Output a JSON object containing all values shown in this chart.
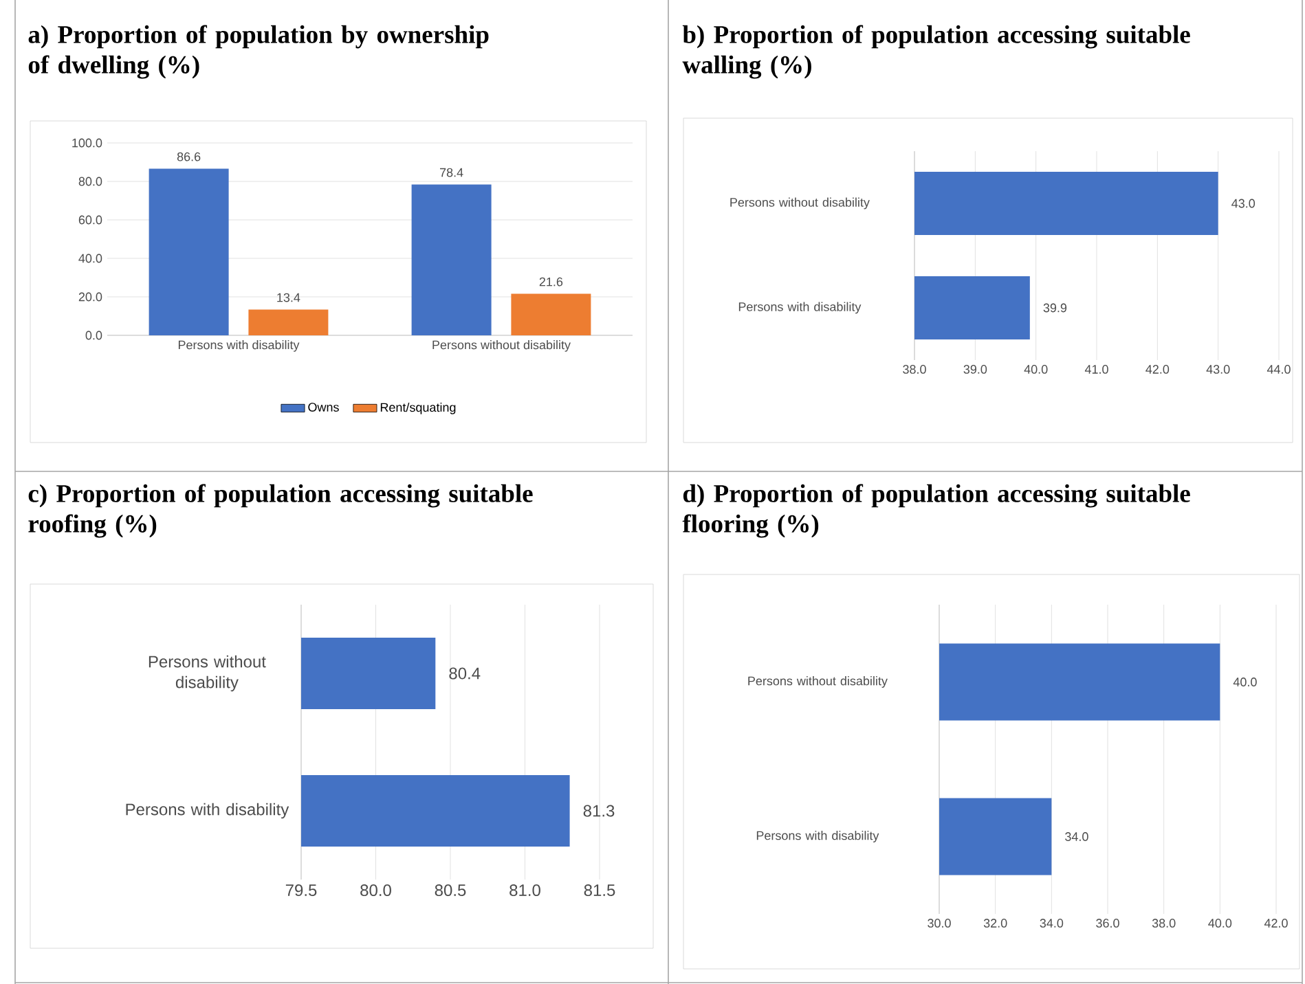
{
  "chart_data": [
    {
      "type": "bar",
      "title": "a) Proportion of population by ownership of dwelling (%)",
      "categories": [
        "Persons with disability",
        "Persons without disability"
      ],
      "series": [
        {
          "name": "Owns",
          "color": "#4472c4",
          "values": [
            86.6,
            78.4
          ],
          "value_labels": [
            "86.6",
            "78.4"
          ]
        },
        {
          "name": "Rent/squating",
          "color": "#ed7d31",
          "values": [
            13.4,
            21.6
          ],
          "value_labels": [
            "13.4",
            "21.6"
          ]
        }
      ],
      "ylim": [
        0,
        100
      ],
      "yticks": [
        {
          "value": 0,
          "label": "0.0"
        },
        {
          "value": 20,
          "label": "20.0"
        },
        {
          "value": 40,
          "label": "40.0"
        },
        {
          "value": 60,
          "label": "60.0"
        },
        {
          "value": 80,
          "label": "80.0"
        },
        {
          "value": 100,
          "label": "100.0"
        }
      ],
      "grid": "y",
      "legend": "bottom"
    },
    {
      "type": "bar",
      "orientation": "horizontal",
      "title": "b) Proportion of population accessing suitable walling (%)",
      "categories": [
        "Persons without disability",
        "Persons with disability"
      ],
      "values": [
        43.0,
        39.9
      ],
      "value_labels": [
        "43.0",
        "39.9"
      ],
      "color": "#4472c4",
      "xlim": [
        38,
        44
      ],
      "xticks": [
        {
          "value": 38,
          "label": "38.0"
        },
        {
          "value": 39,
          "label": "39.0"
        },
        {
          "value": 40,
          "label": "40.0"
        },
        {
          "value": 41,
          "label": "41.0"
        },
        {
          "value": 42,
          "label": "42.0"
        },
        {
          "value": 43,
          "label": "43.0"
        },
        {
          "value": 44,
          "label": "44.0"
        }
      ],
      "grid": "x"
    },
    {
      "type": "bar",
      "orientation": "horizontal",
      "title": "c) Proportion of population accessing suitable roofing (%)",
      "categories": [
        "Persons without disability",
        "Persons with disability"
      ],
      "values": [
        80.4,
        81.3
      ],
      "value_labels": [
        "80.4",
        "81.3"
      ],
      "color": "#4472c4",
      "xlim": [
        79.5,
        81.5
      ],
      "xticks": [
        {
          "value": 79.5,
          "label": "79.5"
        },
        {
          "value": 80,
          "label": "80.0"
        },
        {
          "value": 80.5,
          "label": "80.5"
        },
        {
          "value": 81,
          "label": "81.0"
        },
        {
          "value": 81.5,
          "label": "81.5"
        }
      ],
      "grid": "x"
    },
    {
      "type": "bar",
      "orientation": "horizontal",
      "title": "d) Proportion of population accessing suitable flooring (%)",
      "categories": [
        "Persons without disability",
        "Persons with disability"
      ],
      "values": [
        40.0,
        34.0
      ],
      "value_labels": [
        "40.0",
        "34.0"
      ],
      "color": "#4472c4",
      "xlim": [
        30,
        42
      ],
      "xticks": [
        {
          "value": 30,
          "label": "30.0"
        },
        {
          "value": 32,
          "label": "32.0"
        },
        {
          "value": 34,
          "label": "34.0"
        },
        {
          "value": 36,
          "label": "36.0"
        },
        {
          "value": 38,
          "label": "38.0"
        },
        {
          "value": 40,
          "label": "40.0"
        },
        {
          "value": 42,
          "label": "42.0"
        }
      ],
      "grid": "x"
    }
  ]
}
